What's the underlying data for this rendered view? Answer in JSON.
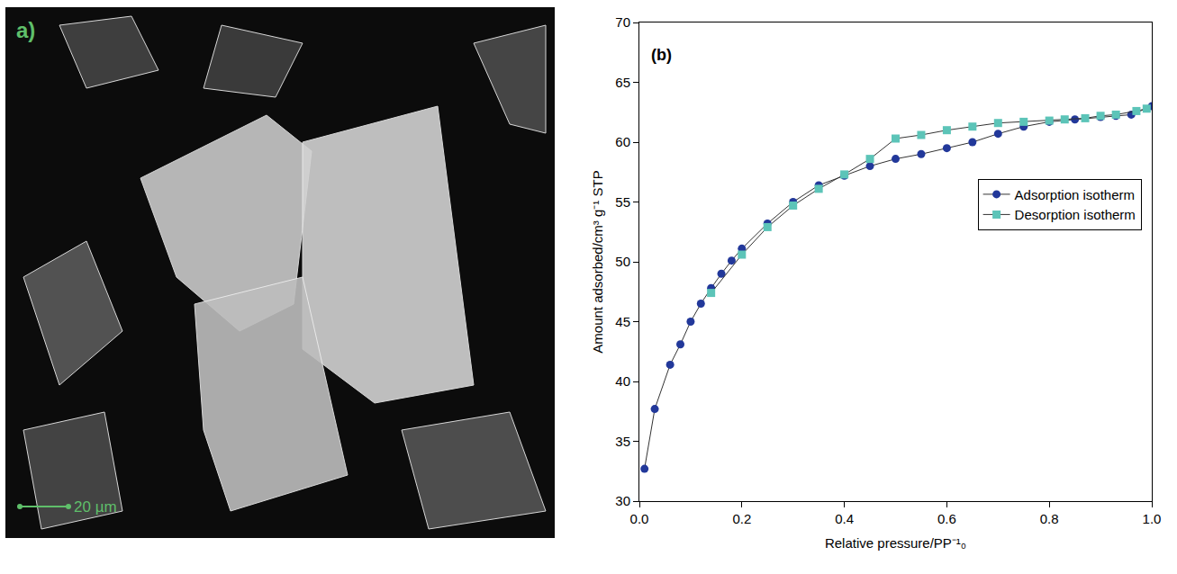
{
  "image_panel": {
    "label": "a)",
    "scale_bar": "20 µm"
  },
  "chart_data": {
    "type": "line",
    "panel_label": "(b)",
    "x_label": "Relative pressure/PP⁻¹₀",
    "y_label": "Amount adsorbed/cm³ g⁻¹ STP",
    "xlim": [
      0,
      1
    ],
    "xticks": [
      {
        "value": 0,
        "label": "0.0"
      },
      0.2,
      0.4,
      0.6,
      0.8,
      {
        "value": 1,
        "label": "1.0"
      }
    ],
    "ylim": [
      30,
      70
    ],
    "yticks": [
      30,
      35,
      40,
      45,
      50,
      55,
      60,
      65,
      70
    ],
    "grid": false,
    "legend": "right",
    "series": [
      {
        "name": "Adsorption isotherm",
        "color": "#22389a",
        "marker": "circle",
        "line_style": "solid",
        "x": [
          0.01,
          0.03,
          0.06,
          0.08,
          0.1,
          0.12,
          0.14,
          0.16,
          0.18,
          0.2,
          0.25,
          0.3,
          0.35,
          0.4,
          0.45,
          0.5,
          0.55,
          0.6,
          0.65,
          0.7,
          0.75,
          0.8,
          0.85,
          0.9,
          0.93,
          0.96,
          1.0
        ],
        "values": [
          32.7,
          37.7,
          41.4,
          43.1,
          45.0,
          46.5,
          47.8,
          49.0,
          50.1,
          51.1,
          53.2,
          55.0,
          56.4,
          57.2,
          58.0,
          58.6,
          59.0,
          59.5,
          60.0,
          60.7,
          61.3,
          61.7,
          61.9,
          62.1,
          62.2,
          62.3,
          63.0
        ]
      },
      {
        "name": "Desorption isotherm",
        "color": "#5cc4b8",
        "marker": "square",
        "line_style": "solid",
        "x": [
          0.99,
          0.97,
          0.93,
          0.9,
          0.87,
          0.83,
          0.8,
          0.75,
          0.7,
          0.65,
          0.6,
          0.55,
          0.5,
          0.45,
          0.4,
          0.35,
          0.3,
          0.25,
          0.2,
          0.14
        ],
        "values": [
          62.8,
          62.6,
          62.3,
          62.2,
          62.0,
          61.9,
          61.8,
          61.7,
          61.6,
          61.3,
          61.0,
          60.6,
          60.3,
          58.6,
          57.3,
          56.1,
          54.7,
          52.9,
          50.6,
          47.4
        ]
      }
    ]
  }
}
